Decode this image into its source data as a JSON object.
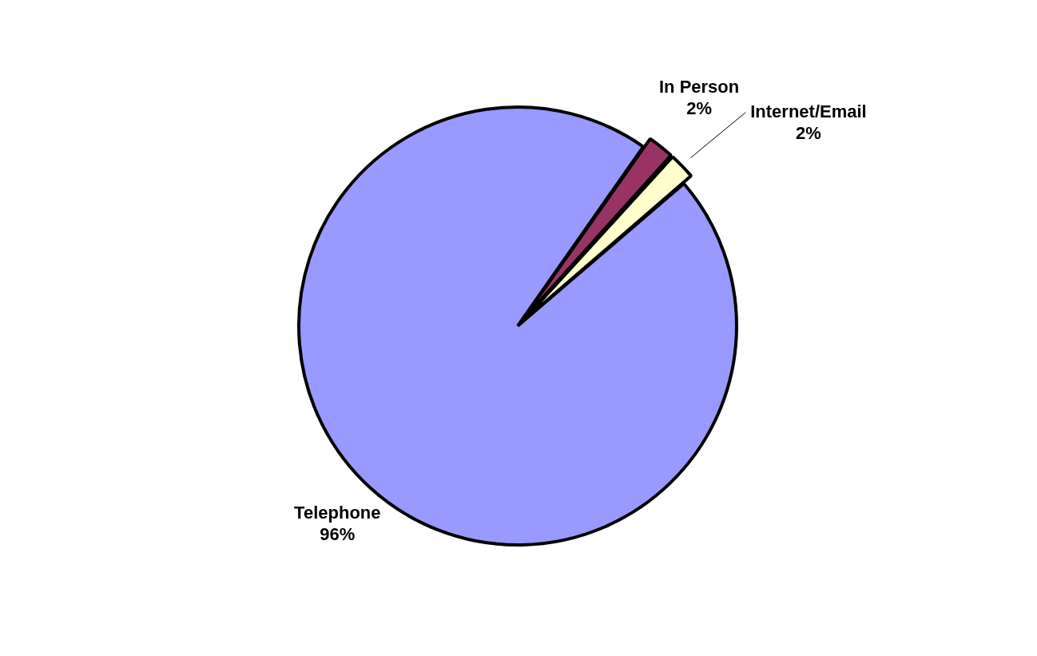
{
  "chart_data": {
    "type": "pie",
    "categories": [
      "In Person",
      "Internet/Email",
      "Telephone"
    ],
    "values": [
      2,
      2,
      96
    ],
    "colors": [
      "#993366",
      "#ffffcc",
      "#9999ff"
    ],
    "value_labels": [
      "2%",
      "2%",
      "96%"
    ],
    "legend": false
  }
}
